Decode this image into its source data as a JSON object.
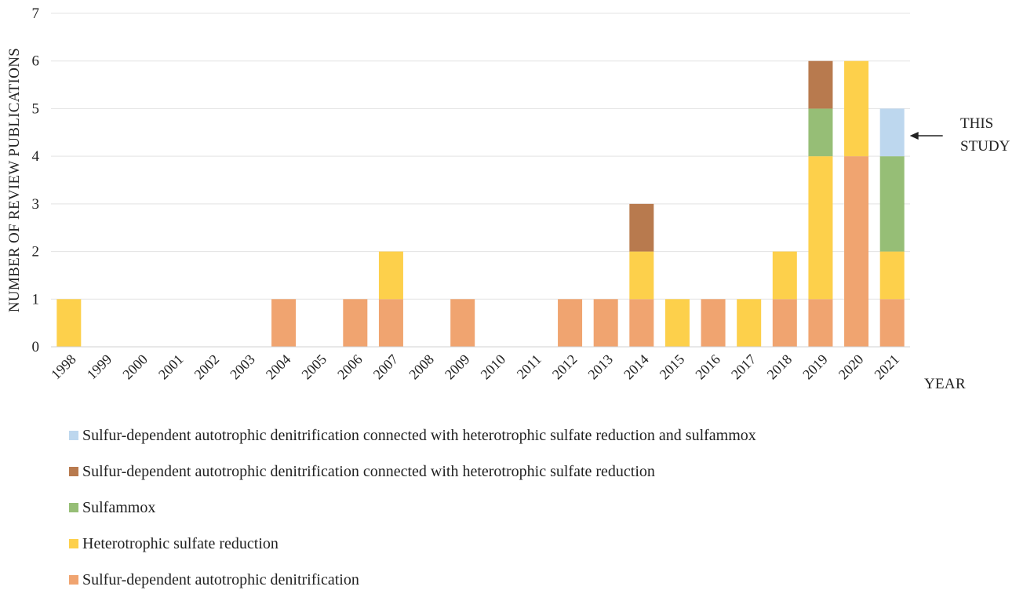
{
  "chart_data": {
    "type": "bar",
    "stacked": true,
    "categories": [
      "1998",
      "1999",
      "2000",
      "2001",
      "2002",
      "2003",
      "2004",
      "2005",
      "2006",
      "2007",
      "2008",
      "2009",
      "2010",
      "2011",
      "2012",
      "2013",
      "2014",
      "2015",
      "2016",
      "2017",
      "2018",
      "2019",
      "2020",
      "2021"
    ],
    "series": [
      {
        "name": "Sulfur-dependent autotrophic denitrification",
        "color": "#F0A470",
        "values": [
          0,
          0,
          0,
          0,
          0,
          0,
          1,
          0,
          1,
          1,
          0,
          1,
          0,
          0,
          1,
          1,
          1,
          0,
          1,
          0,
          1,
          1,
          4,
          1
        ]
      },
      {
        "name": "Heterotrophic sulfate reduction",
        "color": "#FDD04B",
        "values": [
          1,
          0,
          0,
          0,
          0,
          0,
          0,
          0,
          0,
          1,
          0,
          0,
          0,
          0,
          0,
          0,
          1,
          1,
          0,
          1,
          1,
          3,
          2,
          1
        ]
      },
      {
        "name": "Sulfammox",
        "color": "#96BE76",
        "values": [
          0,
          0,
          0,
          0,
          0,
          0,
          0,
          0,
          0,
          0,
          0,
          0,
          0,
          0,
          0,
          0,
          0,
          0,
          0,
          0,
          0,
          1,
          0,
          2
        ]
      },
      {
        "name": "Sulfur-dependent autotrophic denitrification connected with heterotrophic sulfate reduction",
        "color": "#B87A4E",
        "values": [
          0,
          0,
          0,
          0,
          0,
          0,
          0,
          0,
          0,
          0,
          0,
          0,
          0,
          0,
          0,
          0,
          1,
          0,
          0,
          0,
          0,
          1,
          0,
          0
        ]
      },
      {
        "name": "Sulfur-dependent autotrophic denitrification connected with heterotrophic sulfate reduction and sulfammox",
        "color": "#BDD7EE",
        "values": [
          0,
          0,
          0,
          0,
          0,
          0,
          0,
          0,
          0,
          0,
          0,
          0,
          0,
          0,
          0,
          0,
          0,
          0,
          0,
          0,
          0,
          0,
          0,
          1
        ]
      }
    ],
    "xlabel": "YEAR",
    "ylabel": "NUMBER OF REVIEW PUBLICATIONS",
    "ylim": [
      0,
      7
    ],
    "yticks": [
      0,
      1,
      2,
      3,
      4,
      5,
      6,
      7
    ],
    "grid": true,
    "legend_position": "bottom",
    "annotation": {
      "lines": [
        "THIS",
        "STUDY"
      ],
      "target_category": "2021"
    }
  }
}
